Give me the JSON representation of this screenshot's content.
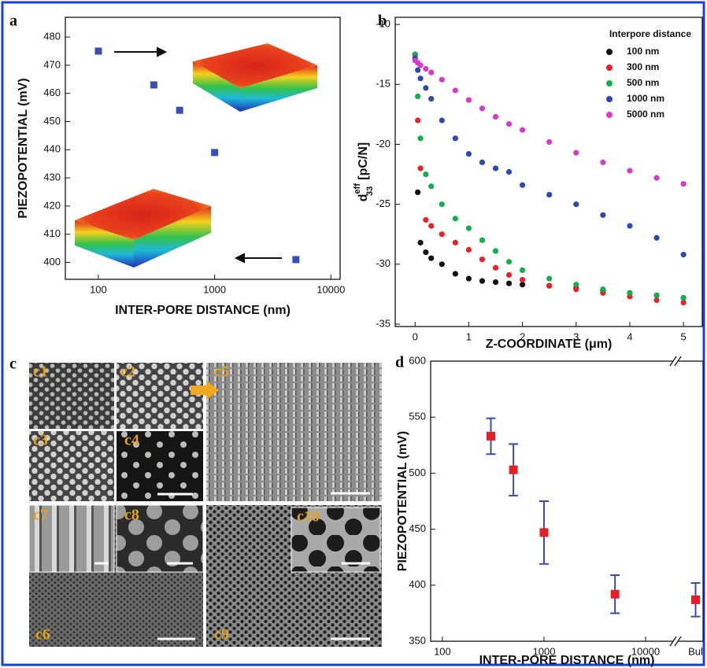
{
  "chart_data": [
    {
      "type": "scatter",
      "panel_label": "a",
      "xlabel": "INTER-PORE DISTANCE (nm)",
      "ylabel": "PIEZOPOTENTIAL (mV)",
      "x": [
        100,
        300,
        500,
        1000,
        5000
      ],
      "values": [
        475,
        463,
        454,
        439,
        401
      ],
      "color": "#3a4fb5",
      "xscale": "log",
      "xlim": [
        52,
        12000
      ],
      "ylim": [
        394,
        487
      ],
      "xticks": [
        100,
        1000,
        10000
      ],
      "yticks": [
        400,
        410,
        420,
        430,
        440,
        450,
        460,
        470,
        480
      ]
    },
    {
      "type": "multiscatter",
      "panel_label": "b",
      "xlabel": "Z-COORDINATE (μm)",
      "ylabel": {
        "main": "d",
        "sup": "eff",
        "sub": "33",
        "unit": "[pC/N]"
      },
      "legend_title": "Interpore distance",
      "legend": "upper right",
      "x": [
        0,
        0.05,
        0.1,
        0.2,
        0.3,
        0.5,
        0.75,
        1,
        1.25,
        1.5,
        1.75,
        2,
        2.5,
        3,
        3.5,
        4,
        4.5,
        5
      ],
      "series": [
        {
          "name": "100 nm",
          "color": "#111111",
          "values": [
            -12.5,
            -24,
            -28.2,
            -29,
            -29.5,
            -30,
            -30.8,
            -31.2,
            -31.4,
            -31.5,
            -31.6,
            -31.7,
            -31.8,
            -32,
            -32.2,
            -32.4,
            -32.6,
            -32.8
          ]
        },
        {
          "name": "300 nm",
          "color": "#e8202a",
          "values": [
            -12.5,
            -18,
            -22,
            -26.3,
            -26.8,
            -27.5,
            -28.2,
            -28.8,
            -29.6,
            -30.3,
            -30.9,
            -31.3,
            -31.8,
            -32.1,
            -32.4,
            -32.7,
            -33,
            -33.2
          ]
        },
        {
          "name": "500 nm",
          "color": "#12b04a",
          "values": [
            -12.5,
            -16,
            -19.5,
            -22.5,
            -23.5,
            -25,
            -26.2,
            -27,
            -28,
            -28.9,
            -29.8,
            -30.5,
            -31.2,
            -31.7,
            -32.1,
            -32.4,
            -32.6,
            -32.8
          ]
        },
        {
          "name": "1000 nm",
          "color": "#2f48b0",
          "values": [
            -12.8,
            -13.8,
            -14.5,
            -15.3,
            -16.2,
            -18,
            -19.5,
            -20.8,
            -21.5,
            -22,
            -22.3,
            -23.4,
            -24.2,
            -25,
            -25.9,
            -26.8,
            -27.8,
            -29.2
          ]
        },
        {
          "name": "5000 nm",
          "color": "#d43bc9",
          "values": [
            -13,
            -13.2,
            -13.4,
            -13.7,
            -14,
            -14.6,
            -15.5,
            -16.3,
            -17,
            -17.7,
            -18.3,
            -18.8,
            -19.8,
            -20.7,
            -21.5,
            -22.2,
            -22.8,
            -23.3
          ]
        }
      ],
      "xlim": [
        -0.37,
        5.35
      ],
      "ylim": [
        -35.2,
        -9.4
      ],
      "xticks": [
        0,
        1,
        2,
        3,
        4,
        5
      ],
      "yticks": [
        -35,
        -30,
        -25,
        -20,
        -15,
        -10
      ]
    },
    {
      "type": "errorbar",
      "panel_label": "d",
      "xlabel": "INTER-PORE DISTANCE (nm)",
      "ylabel": "PIEZOPOTENTIAL (mV)",
      "x": [
        300,
        500,
        1000,
        5000
      ],
      "values": [
        533,
        503,
        447,
        392
      ],
      "errors": [
        16,
        23,
        28,
        17
      ],
      "break_category": {
        "label": "Bul",
        "value": 387,
        "error": 15
      },
      "color": "#e51e25",
      "error_color": "#3a4bb0",
      "xscale": "log",
      "xlim": [
        76.6,
        19700
      ],
      "ylim": [
        350,
        600
      ],
      "xticks": [
        100,
        1000,
        10000
      ],
      "yticks": [
        350,
        400,
        450,
        500,
        550,
        600
      ]
    }
  ],
  "sem_panel": {
    "label": "c",
    "images": [
      "c1",
      "c2",
      "c3",
      "c4",
      "c5",
      "c6",
      "c7",
      "c8",
      "c9",
      "c10"
    ]
  }
}
